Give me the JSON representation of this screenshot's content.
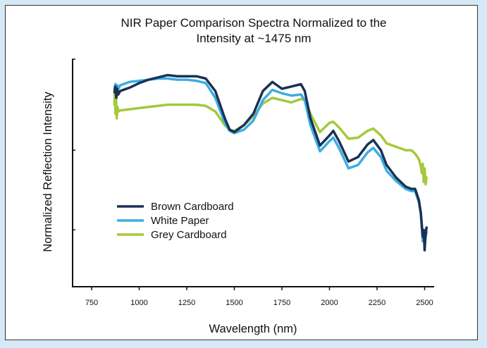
{
  "chart_data": {
    "type": "line",
    "title": "NIR Paper Comparison  Spectra Normalized to the",
    "subtitle": "Intensity at ~1475 nm",
    "xlabel": "Wavelength (nm)",
    "ylabel": "Normalized Reflection Intensity",
    "xlim": [
      650,
      2550
    ],
    "ylim": [
      0,
      1
    ],
    "x_ticks": [
      750,
      1000,
      1250,
      1500,
      1750,
      2000,
      2250,
      2500
    ],
    "x_tick_labels": [
      "750",
      "1000",
      "1250",
      "1500",
      "1750",
      "2000",
      "2250",
      "2500"
    ],
    "y_ticks": [
      0.25,
      0.6,
      1.0
    ],
    "grid": false,
    "legend_position": "lower-left",
    "series": [
      {
        "name": "Brown Cardboard",
        "color": "#1b3154",
        "points": [
          [
            870,
            0.855
          ],
          [
            875,
            0.88
          ],
          [
            880,
            0.83
          ],
          [
            885,
            0.87
          ],
          [
            890,
            0.845
          ],
          [
            900,
            0.86
          ],
          [
            950,
            0.875
          ],
          [
            1000,
            0.895
          ],
          [
            1050,
            0.91
          ],
          [
            1100,
            0.92
          ],
          [
            1150,
            0.93
          ],
          [
            1200,
            0.925
          ],
          [
            1250,
            0.925
          ],
          [
            1300,
            0.925
          ],
          [
            1350,
            0.915
          ],
          [
            1400,
            0.86
          ],
          [
            1450,
            0.74
          ],
          [
            1475,
            0.69
          ],
          [
            1500,
            0.68
          ],
          [
            1550,
            0.71
          ],
          [
            1600,
            0.76
          ],
          [
            1650,
            0.86
          ],
          [
            1700,
            0.9
          ],
          [
            1750,
            0.87
          ],
          [
            1800,
            0.88
          ],
          [
            1850,
            0.89
          ],
          [
            1870,
            0.86
          ],
          [
            1900,
            0.74
          ],
          [
            1950,
            0.62
          ],
          [
            2000,
            0.665
          ],
          [
            2020,
            0.685
          ],
          [
            2050,
            0.64
          ],
          [
            2100,
            0.55
          ],
          [
            2150,
            0.57
          ],
          [
            2200,
            0.625
          ],
          [
            2230,
            0.645
          ],
          [
            2270,
            0.6
          ],
          [
            2300,
            0.535
          ],
          [
            2350,
            0.48
          ],
          [
            2400,
            0.44
          ],
          [
            2430,
            0.43
          ],
          [
            2450,
            0.43
          ],
          [
            2470,
            0.38
          ],
          [
            2480,
            0.325
          ],
          [
            2490,
            0.22
          ],
          [
            2495,
            0.25
          ],
          [
            2500,
            0.16
          ],
          [
            2505,
            0.23
          ],
          [
            2510,
            0.26
          ]
        ]
      },
      {
        "name": "White Paper",
        "color": "#3aaee2",
        "points": [
          [
            870,
            0.87
          ],
          [
            875,
            0.89
          ],
          [
            880,
            0.85
          ],
          [
            885,
            0.885
          ],
          [
            890,
            0.87
          ],
          [
            900,
            0.885
          ],
          [
            950,
            0.9
          ],
          [
            1000,
            0.905
          ],
          [
            1050,
            0.91
          ],
          [
            1100,
            0.915
          ],
          [
            1150,
            0.915
          ],
          [
            1200,
            0.91
          ],
          [
            1250,
            0.91
          ],
          [
            1300,
            0.905
          ],
          [
            1350,
            0.895
          ],
          [
            1400,
            0.83
          ],
          [
            1450,
            0.72
          ],
          [
            1475,
            0.685
          ],
          [
            1500,
            0.675
          ],
          [
            1550,
            0.69
          ],
          [
            1600,
            0.73
          ],
          [
            1650,
            0.82
          ],
          [
            1700,
            0.865
          ],
          [
            1750,
            0.85
          ],
          [
            1800,
            0.84
          ],
          [
            1850,
            0.845
          ],
          [
            1870,
            0.82
          ],
          [
            1900,
            0.71
          ],
          [
            1950,
            0.595
          ],
          [
            2000,
            0.64
          ],
          [
            2020,
            0.655
          ],
          [
            2050,
            0.61
          ],
          [
            2100,
            0.52
          ],
          [
            2150,
            0.535
          ],
          [
            2200,
            0.59
          ],
          [
            2230,
            0.61
          ],
          [
            2270,
            0.57
          ],
          [
            2300,
            0.51
          ],
          [
            2350,
            0.465
          ],
          [
            2400,
            0.43
          ],
          [
            2430,
            0.42
          ],
          [
            2450,
            0.42
          ],
          [
            2470,
            0.37
          ],
          [
            2480,
            0.32
          ],
          [
            2490,
            0.2
          ],
          [
            2495,
            0.24
          ],
          [
            2500,
            0.19
          ],
          [
            2505,
            0.22
          ],
          [
            2510,
            0.24
          ]
        ]
      },
      {
        "name": "Grey Cardboard",
        "color": "#a4c93b",
        "points": [
          [
            870,
            0.8
          ],
          [
            872,
            0.86
          ],
          [
            875,
            0.76
          ],
          [
            878,
            0.83
          ],
          [
            882,
            0.74
          ],
          [
            886,
            0.79
          ],
          [
            890,
            0.77
          ],
          [
            900,
            0.775
          ],
          [
            950,
            0.78
          ],
          [
            1000,
            0.785
          ],
          [
            1050,
            0.79
          ],
          [
            1100,
            0.795
          ],
          [
            1150,
            0.8
          ],
          [
            1200,
            0.8
          ],
          [
            1250,
            0.8
          ],
          [
            1300,
            0.8
          ],
          [
            1350,
            0.795
          ],
          [
            1400,
            0.77
          ],
          [
            1450,
            0.71
          ],
          [
            1475,
            0.69
          ],
          [
            1500,
            0.685
          ],
          [
            1550,
            0.71
          ],
          [
            1600,
            0.75
          ],
          [
            1650,
            0.805
          ],
          [
            1700,
            0.83
          ],
          [
            1750,
            0.82
          ],
          [
            1800,
            0.81
          ],
          [
            1850,
            0.825
          ],
          [
            1870,
            0.82
          ],
          [
            1900,
            0.76
          ],
          [
            1950,
            0.68
          ],
          [
            2000,
            0.72
          ],
          [
            2020,
            0.725
          ],
          [
            2050,
            0.7
          ],
          [
            2100,
            0.65
          ],
          [
            2150,
            0.655
          ],
          [
            2200,
            0.685
          ],
          [
            2230,
            0.695
          ],
          [
            2270,
            0.665
          ],
          [
            2300,
            0.63
          ],
          [
            2350,
            0.615
          ],
          [
            2400,
            0.6
          ],
          [
            2430,
            0.6
          ],
          [
            2450,
            0.585
          ],
          [
            2470,
            0.56
          ],
          [
            2480,
            0.53
          ],
          [
            2485,
            0.5
          ],
          [
            2490,
            0.54
          ],
          [
            2495,
            0.46
          ],
          [
            2500,
            0.52
          ],
          [
            2505,
            0.45
          ],
          [
            2510,
            0.48
          ]
        ]
      }
    ]
  }
}
